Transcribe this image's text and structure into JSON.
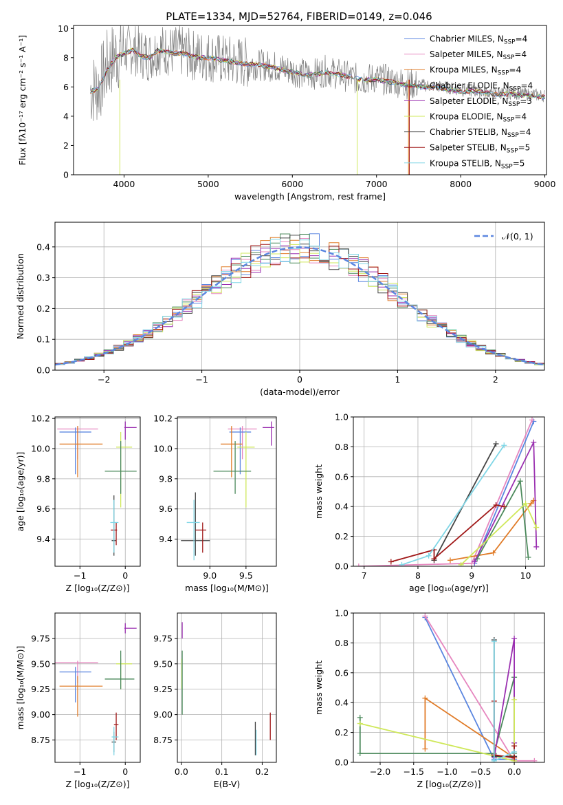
{
  "figure_title": "PLATE=1334, MJD=52764, FIBERID=0149, z=0.046",
  "colors": {
    "Chabrier MILES": "#5b86e0",
    "Salpeter MILES": "#e686bf",
    "Kroupa MILES": "#e07b27",
    "Chabrier ELODIE": "#4c8a5c",
    "Salpeter ELODIE": "#9a2fb0",
    "Kroupa ELODIE": "#cfe85a",
    "Chabrier STELIB": "#444444",
    "Salpeter STELIB": "#a01818",
    "Kroupa STELIB": "#7fd6e6",
    "data": "#808080",
    "grid": "#b0b0b0"
  },
  "chart_data": [
    {
      "type": "line",
      "title": "PLATE=1334, MJD=52764, FIBERID=0149, z=0.046",
      "xlabel": "wavelength [Angstrom, rest frame]",
      "ylabel": "Flux [fλ10⁻¹⁷ erg cm⁻² s⁻¹ A⁻¹]",
      "xlim": [
        3400,
        9020
      ],
      "ylim": [
        0,
        10.2
      ],
      "xticks": [
        4000,
        5000,
        6000,
        7000,
        8000,
        9000
      ],
      "yticks": [
        0,
        2,
        4,
        6,
        8,
        10
      ],
      "grid": false,
      "legend": "top-right",
      "legend_entries": [
        "Chabrier MILES, N_SSP=4",
        "Salpeter MILES, N_SSP=4",
        "Kroupa MILES, N_SSP=4",
        "Chabrier ELODIE, N_SSP=4",
        "Salpeter ELODIE, N_SSP=3",
        "Kroupa ELODIE, N_SSP=4",
        "Chabrier STELIB, N_SSP=4",
        "Salpeter STELIB, N_SSP=5",
        "Kroupa STELIB, N_SSP=5"
      ],
      "data_series": {
        "name": "data",
        "x": [
          3600,
          3700,
          3800,
          3900,
          4000,
          4100,
          4200,
          4300,
          4400,
          4500,
          4600,
          4700,
          4800,
          4900,
          5000,
          5200,
          5400,
          5600,
          5800,
          6000,
          6200,
          6400,
          6600,
          6800,
          7000,
          7200,
          7400,
          7600,
          7800,
          8000,
          8200,
          8400,
          8600,
          8800,
          9000
        ],
        "y": [
          5.8,
          6.0,
          7.4,
          8.2,
          8.4,
          8.6,
          8.3,
          8.1,
          8.6,
          8.5,
          8.4,
          8.4,
          8.2,
          8.1,
          8.1,
          7.8,
          7.7,
          7.5,
          7.4,
          7.1,
          6.8,
          7.1,
          6.8,
          6.5,
          6.6,
          6.4,
          6.2,
          6.1,
          6.0,
          5.8,
          5.7,
          5.6,
          5.6,
          5.5,
          5.4
        ]
      },
      "model_series": {
        "x": [
          3600,
          3700,
          3800,
          3900,
          4000,
          4100,
          4200,
          4300,
          4400,
          4500,
          4600,
          4700,
          4800,
          4900,
          5000,
          5200,
          5400,
          5600,
          5800,
          6000,
          6200,
          6400,
          6600,
          6800,
          7000,
          7200,
          7400,
          7600,
          7800,
          8000,
          8200,
          8400,
          8600,
          8800,
          9000
        ],
        "y": [
          5.7,
          5.9,
          7.2,
          8.0,
          8.3,
          8.5,
          8.1,
          8.0,
          8.5,
          8.4,
          8.3,
          8.3,
          8.1,
          8.0,
          8.0,
          7.8,
          7.6,
          7.5,
          7.3,
          7.0,
          6.8,
          7.0,
          6.8,
          6.5,
          6.5,
          6.3,
          6.1,
          6.0,
          5.9,
          5.7,
          5.7,
          5.5,
          5.5,
          5.4,
          5.3
        ]
      }
    },
    {
      "type": "bar",
      "xlabel": "(data-model)/error",
      "ylabel": "Normed distribution",
      "xlim": [
        -2.5,
        2.5
      ],
      "ylim": [
        0,
        0.48
      ],
      "xticks": [
        -2,
        -1,
        0,
        1,
        2
      ],
      "yticks": [
        0.0,
        0.1,
        0.2,
        0.3,
        0.4
      ],
      "grid": true,
      "legend": "top-right",
      "legend_entries": [
        "𝒩(0, 1)"
      ],
      "bin_width": 0.1
    },
    {
      "type": "scatter",
      "xlabel": "Z [log₁₀(Z/Z⊙)]",
      "ylabel": "age  [log₁₀(age/yr)]",
      "xlim": [
        -1.55,
        0.33
      ],
      "ylim": [
        9.22,
        10.21
      ],
      "xticks": [
        -1,
        0
      ],
      "yticks": [
        9.4,
        9.6,
        9.8,
        10.0,
        10.2
      ],
      "grid": true,
      "points": [
        {
          "model": "Salpeter MILES",
          "x": -1.05,
          "y": 10.13,
          "xerr": [
            0.45,
            0.45
          ],
          "yerr": [
            0.2,
            0.02
          ]
        },
        {
          "model": "Chabrier MILES",
          "x": -1.1,
          "y": 10.11,
          "xerr": [
            0.35,
            0.35
          ],
          "yerr": [
            0.28,
            0.03
          ]
        },
        {
          "model": "Kroupa MILES",
          "x": -1.05,
          "y": 10.03,
          "xerr": [
            0.4,
            0.55
          ],
          "yerr": [
            0.22,
            0.12
          ]
        },
        {
          "model": "Salpeter ELODIE",
          "x": 0.0,
          "y": 10.14,
          "xerr": [
            0.02,
            0.25
          ],
          "yerr": [
            0.08,
            0.04
          ]
        },
        {
          "model": "Kroupa ELODIE",
          "x": -0.1,
          "y": 10.01,
          "xerr": [
            0.1,
            0.25
          ],
          "yerr": [
            0.4,
            0.1
          ]
        },
        {
          "model": "Chabrier ELODIE",
          "x": -0.1,
          "y": 9.85,
          "xerr": [
            0.35,
            0.35
          ],
          "yerr": [
            0.15,
            0.2
          ]
        },
        {
          "model": "Chabrier STELIB",
          "x": -0.25,
          "y": 9.39,
          "xerr": [
            0.05,
            0.05
          ],
          "yerr": [
            0.1,
            0.3
          ]
        },
        {
          "model": "Salpeter STELIB",
          "x": -0.2,
          "y": 9.46,
          "xerr": [
            0.12,
            0.02
          ],
          "yerr": [
            0.1,
            0.05
          ]
        },
        {
          "model": "Kroupa STELIB",
          "x": -0.25,
          "y": 9.51,
          "xerr": [
            0.08,
            0.1
          ],
          "yerr": [
            0.2,
            0.15
          ]
        }
      ]
    },
    {
      "type": "scatter",
      "xlabel": "mass [log₁₀(M/M⊙)]",
      "ylabel": "",
      "xlim": [
        8.55,
        9.92
      ],
      "ylim": [
        9.22,
        10.21
      ],
      "xticks": [
        9.0,
        9.5
      ],
      "yticks": [
        9.4,
        9.6,
        9.8,
        10.0,
        10.2
      ],
      "grid": true,
      "points": [
        {
          "model": "Salpeter MILES",
          "x": 9.45,
          "y": 10.13,
          "xerr": [
            0.2,
            0.2
          ],
          "yerr": [
            0.2,
            0.02
          ]
        },
        {
          "model": "Chabrier MILES",
          "x": 9.42,
          "y": 10.11,
          "xerr": [
            0.15,
            0.15
          ],
          "yerr": [
            0.28,
            0.03
          ]
        },
        {
          "model": "Kroupa MILES",
          "x": 9.3,
          "y": 10.03,
          "xerr": [
            0.15,
            0.15
          ],
          "yerr": [
            0.22,
            0.12
          ]
        },
        {
          "model": "Salpeter ELODIE",
          "x": 9.85,
          "y": 10.14,
          "xerr": [
            0.12,
            0.04
          ],
          "yerr": [
            0.12,
            0.04
          ]
        },
        {
          "model": "Kroupa ELODIE",
          "x": 9.5,
          "y": 10.01,
          "xerr": [
            0.12,
            0.12
          ],
          "yerr": [
            0.4,
            0.1
          ]
        },
        {
          "model": "Chabrier ELODIE",
          "x": 9.35,
          "y": 9.85,
          "xerr": [
            0.3,
            0.22
          ],
          "yerr": [
            0.15,
            0.2
          ]
        },
        {
          "model": "Chabrier STELIB",
          "x": 8.8,
          "y": 9.39,
          "xerr": [
            0.2,
            0.2
          ],
          "yerr": [
            0.1,
            0.32
          ]
        },
        {
          "model": "Salpeter STELIB",
          "x": 8.9,
          "y": 9.46,
          "xerr": [
            0.1,
            0.05
          ],
          "yerr": [
            0.15,
            0.05
          ]
        },
        {
          "model": "Kroupa STELIB",
          "x": 8.78,
          "y": 9.51,
          "xerr": [
            0.1,
            0.08
          ],
          "yerr": [
            0.25,
            0.15
          ]
        }
      ]
    },
    {
      "type": "line",
      "xlabel": "age  [log₁₀(age/yr)]",
      "ylabel": "mass weight",
      "xlim": [
        6.8,
        10.35
      ],
      "ylim": [
        0,
        1.0
      ],
      "xticks": [
        7,
        8,
        9,
        10
      ],
      "yticks": [
        0.0,
        0.2,
        0.4,
        0.6,
        0.8,
        1.0
      ],
      "grid": true,
      "series": [
        {
          "model": "Chabrier MILES",
          "x": [
            9.05,
            10.15
          ],
          "y": [
            0.02,
            0.97
          ]
        },
        {
          "model": "Salpeter MILES",
          "x": [
            6.9,
            9.0,
            10.12
          ],
          "y": [
            0.0,
            0.02,
            0.98
          ]
        },
        {
          "model": "Kroupa MILES",
          "x": [
            8.6,
            9.4,
            10.1,
            10.15
          ],
          "y": [
            0.04,
            0.09,
            0.42,
            0.44
          ]
        },
        {
          "model": "Chabrier ELODIE",
          "x": [
            9.1,
            9.9,
            10.05
          ],
          "y": [
            0.05,
            0.57,
            0.06
          ]
        },
        {
          "model": "Salpeter ELODIE",
          "x": [
            9.05,
            10.15,
            10.2
          ],
          "y": [
            0.03,
            0.83,
            0.13
          ]
        },
        {
          "model": "Kroupa ELODIE",
          "x": [
            8.8,
            10.0,
            10.2
          ],
          "y": [
            0.01,
            0.42,
            0.26
          ]
        },
        {
          "model": "Chabrier STELIB",
          "x": [
            8.3,
            9.45
          ],
          "y": [
            0.04,
            0.82
          ]
        },
        {
          "model": "Salpeter STELIB",
          "x": [
            7.5,
            8.3,
            8.3,
            9.45,
            9.6
          ],
          "y": [
            0.03,
            0.11,
            0.05,
            0.41,
            0.4
          ]
        },
        {
          "model": "Kroupa STELIB",
          "x": [
            7.7,
            8.2,
            9.6
          ],
          "y": [
            0.01,
            0.07,
            0.81
          ]
        }
      ]
    },
    {
      "type": "scatter",
      "xlabel": "Z [log₁₀(Z/Z⊙)]",
      "ylabel": "mass [log₁₀(M/M⊙)]",
      "xlim": [
        -1.55,
        0.33
      ],
      "ylim": [
        8.53,
        10.0
      ],
      "xticks": [
        -1,
        0
      ],
      "yticks": [
        8.75,
        9.0,
        9.25,
        9.5,
        9.75
      ],
      "grid": true,
      "points": [
        {
          "model": "Salpeter MILES",
          "x": -1.05,
          "y": 9.51,
          "xerr": [
            0.5,
            0.45
          ],
          "yerr": [
            0.2,
            0.02
          ]
        },
        {
          "model": "Chabrier MILES",
          "x": -1.1,
          "y": 9.42,
          "xerr": [
            0.35,
            0.35
          ],
          "yerr": [
            0.3,
            0.05
          ]
        },
        {
          "model": "Kroupa MILES",
          "x": -1.05,
          "y": 9.28,
          "xerr": [
            0.4,
            0.55
          ],
          "yerr": [
            0.3,
            0.1
          ]
        },
        {
          "model": "Salpeter ELODIE",
          "x": 0.0,
          "y": 9.85,
          "xerr": [
            0.02,
            0.25
          ],
          "yerr": [
            0.05,
            0.05
          ]
        },
        {
          "model": "Kroupa ELODIE",
          "x": -0.1,
          "y": 9.5,
          "xerr": [
            0.1,
            0.25
          ],
          "yerr": [
            0.25,
            0.05
          ]
        },
        {
          "model": "Chabrier ELODIE",
          "x": -0.1,
          "y": 9.35,
          "xerr": [
            0.35,
            0.3
          ],
          "yerr": [
            0.1,
            0.28
          ]
        },
        {
          "model": "Chabrier STELIB",
          "x": -0.25,
          "y": 8.73,
          "xerr": [
            0.05,
            0.05
          ],
          "yerr": [
            0.1,
            0.1
          ]
        },
        {
          "model": "Salpeter STELIB",
          "x": -0.2,
          "y": 8.9,
          "xerr": [
            0.05,
            0.05
          ],
          "yerr": [
            0.15,
            0.12
          ]
        },
        {
          "model": "Kroupa STELIB",
          "x": -0.25,
          "y": 8.78,
          "xerr": [
            0.05,
            0.1
          ],
          "yerr": [
            0.18,
            0.1
          ]
        }
      ]
    },
    {
      "type": "scatter",
      "xlabel": "E(B-V)",
      "ylabel": "",
      "xlim": [
        -0.01,
        0.235
      ],
      "ylim": [
        8.53,
        10.0
      ],
      "xticks": [
        0.0,
        0.1,
        0.2
      ],
      "yticks": [
        8.75,
        9.0,
        9.25,
        9.5,
        9.75
      ],
      "grid": true,
      "points": [
        {
          "model": "Salpeter ELODIE",
          "x": 0.002,
          "y": 9.85,
          "xerr": [
            0,
            0
          ],
          "yerr": [
            0.1,
            0.06
          ]
        },
        {
          "model": "Kroupa ELODIE",
          "x": 0.001,
          "y": 9.5,
          "xerr": [
            0,
            0
          ],
          "yerr": [
            0.25,
            0.05
          ]
        },
        {
          "model": "Chabrier ELODIE",
          "x": 0.002,
          "y": 9.35,
          "xerr": [
            0,
            0
          ],
          "yerr": [
            0.35,
            0.28
          ]
        },
        {
          "model": "Chabrier STELIB",
          "x": 0.183,
          "y": 8.75,
          "xerr": [
            0,
            0
          ],
          "yerr": [
            0.15,
            0.18
          ]
        },
        {
          "model": "Kroupa STELIB",
          "x": 0.185,
          "y": 8.75,
          "xerr": [
            0,
            0
          ],
          "yerr": [
            0.15,
            0.1
          ]
        },
        {
          "model": "Salpeter STELIB",
          "x": 0.22,
          "y": 8.9,
          "xerr": [
            0,
            0
          ],
          "yerr": [
            0.15,
            0.12
          ]
        }
      ]
    },
    {
      "type": "line",
      "xlabel": "Z [log₁₀(Z/Z⊙)]",
      "ylabel": "mass weight",
      "xlim": [
        -2.4,
        0.45
      ],
      "ylim": [
        0,
        1.0
      ],
      "xticks": [
        -2.0,
        -1.5,
        -1.0,
        -0.5,
        0.0
      ],
      "yticks": [
        0.0,
        0.2,
        0.4,
        0.6,
        0.8,
        1.0
      ],
      "grid": true,
      "series": [
        {
          "model": "Chabrier MILES",
          "x": [
            -1.33,
            -0.3,
            0.0
          ],
          "y": [
            0.97,
            0.02,
            0.02
          ]
        },
        {
          "model": "Salpeter MILES",
          "x": [
            -1.33,
            0.0,
            0.3
          ],
          "y": [
            0.98,
            0.01,
            0.01
          ]
        },
        {
          "model": "Kroupa MILES",
          "x": [
            -1.33,
            -1.33,
            0.0
          ],
          "y": [
            0.09,
            0.43,
            0.03
          ]
        },
        {
          "model": "Chabrier ELODIE",
          "x": [
            -2.3,
            -2.3,
            -0.3,
            0.0,
            0.0
          ],
          "y": [
            0.3,
            0.06,
            0.06,
            0.57,
            0.06
          ]
        },
        {
          "model": "Salpeter ELODIE",
          "x": [
            -0.3,
            0.0,
            0.0
          ],
          "y": [
            0.03,
            0.83,
            0.13
          ]
        },
        {
          "model": "Kroupa ELODIE",
          "x": [
            -2.3,
            0.0,
            0.0
          ],
          "y": [
            0.26,
            0.01,
            0.42
          ]
        },
        {
          "model": "Chabrier STELIB",
          "x": [
            -0.3,
            -0.3,
            0.0
          ],
          "y": [
            0.82,
            0.04,
            0.04
          ]
        },
        {
          "model": "Salpeter STELIB",
          "x": [
            -0.3,
            -0.3,
            0.0,
            0.0
          ],
          "y": [
            0.41,
            0.05,
            0.03,
            0.11
          ]
        },
        {
          "model": "Kroupa STELIB",
          "x": [
            -0.3,
            -0.3,
            0.0
          ],
          "y": [
            0.81,
            0.01,
            0.07
          ]
        }
      ]
    }
  ]
}
